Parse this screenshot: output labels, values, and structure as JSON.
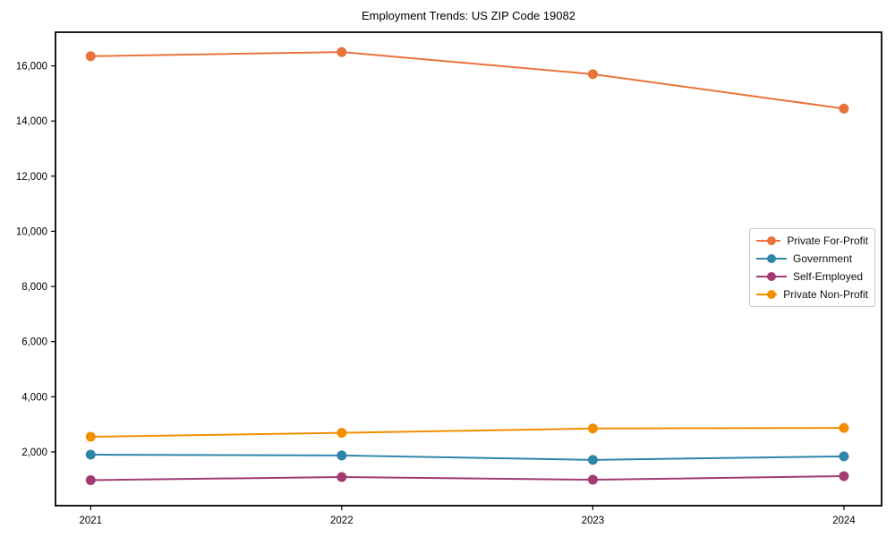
{
  "chart_data": {
    "type": "line",
    "title": "Employment Trends: US ZIP Code 19082",
    "x": [
      2021,
      2022,
      2023,
      2024
    ],
    "x_tick_labels": [
      "2021",
      "2022",
      "2023",
      "2024"
    ],
    "series": [
      {
        "name": "Private For-Profit",
        "color": "#E8743B",
        "values": [
          16350,
          16500,
          15700,
          14450
        ]
      },
      {
        "name": "Government",
        "color": "#2E86AB",
        "values": [
          1900,
          1870,
          1710,
          1840
        ]
      },
      {
        "name": "Self-Employed",
        "color": "#A23B72",
        "values": [
          975,
          1090,
          990,
          1120
        ]
      },
      {
        "name": "Private Non-Profit",
        "color": "#F18F01",
        "values": [
          2550,
          2690,
          2850,
          2870
        ]
      }
    ],
    "yticks": [
      2000,
      4000,
      6000,
      8000,
      10000,
      12000,
      14000,
      16000
    ],
    "ylim": [
      50,
      17220
    ],
    "xlim": [
      2020.86,
      2024.15
    ],
    "xlabel": "",
    "ylabel": "",
    "grid": false,
    "legend_position": "right",
    "axis_color": "#000000",
    "background_color": "#ffffff"
  }
}
